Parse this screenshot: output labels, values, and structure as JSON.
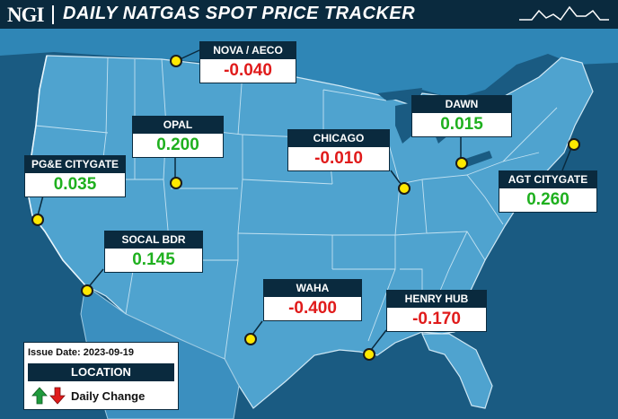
{
  "header": {
    "logo": "NGI",
    "title": "DAILY NATGAS SPOT PRICE TRACKER"
  },
  "colors": {
    "header_bg": "#0a2a3e",
    "map_bg": "#1a5b82",
    "land": "#4fa3cf",
    "positive": "#1fb01f",
    "negative": "#e01b1b",
    "pin": "#ffe800"
  },
  "hubs": [
    {
      "name": "NOVA / AECO",
      "value": "-0.040",
      "direction": "negative"
    },
    {
      "name": "DAWN",
      "value": "0.015",
      "direction": "positive"
    },
    {
      "name": "OPAL",
      "value": "0.200",
      "direction": "positive"
    },
    {
      "name": "CHICAGO",
      "value": "-0.010",
      "direction": "negative"
    },
    {
      "name": "PG&E CITYGATE",
      "value": "0.035",
      "direction": "positive"
    },
    {
      "name": "AGT CITYGATE",
      "value": "0.260",
      "direction": "positive"
    },
    {
      "name": "SOCAL BDR",
      "value": "0.145",
      "direction": "positive"
    },
    {
      "name": "WAHA",
      "value": "-0.400",
      "direction": "negative"
    },
    {
      "name": "HENRY HUB",
      "value": "-0.170",
      "direction": "negative"
    }
  ],
  "legend": {
    "issue_date": "Issue Date: 2023-09-19",
    "location_label": "LOCATION",
    "change_label": "Daily Change",
    "icons": [
      "green-up-arrow",
      "red-down-arrow"
    ]
  }
}
